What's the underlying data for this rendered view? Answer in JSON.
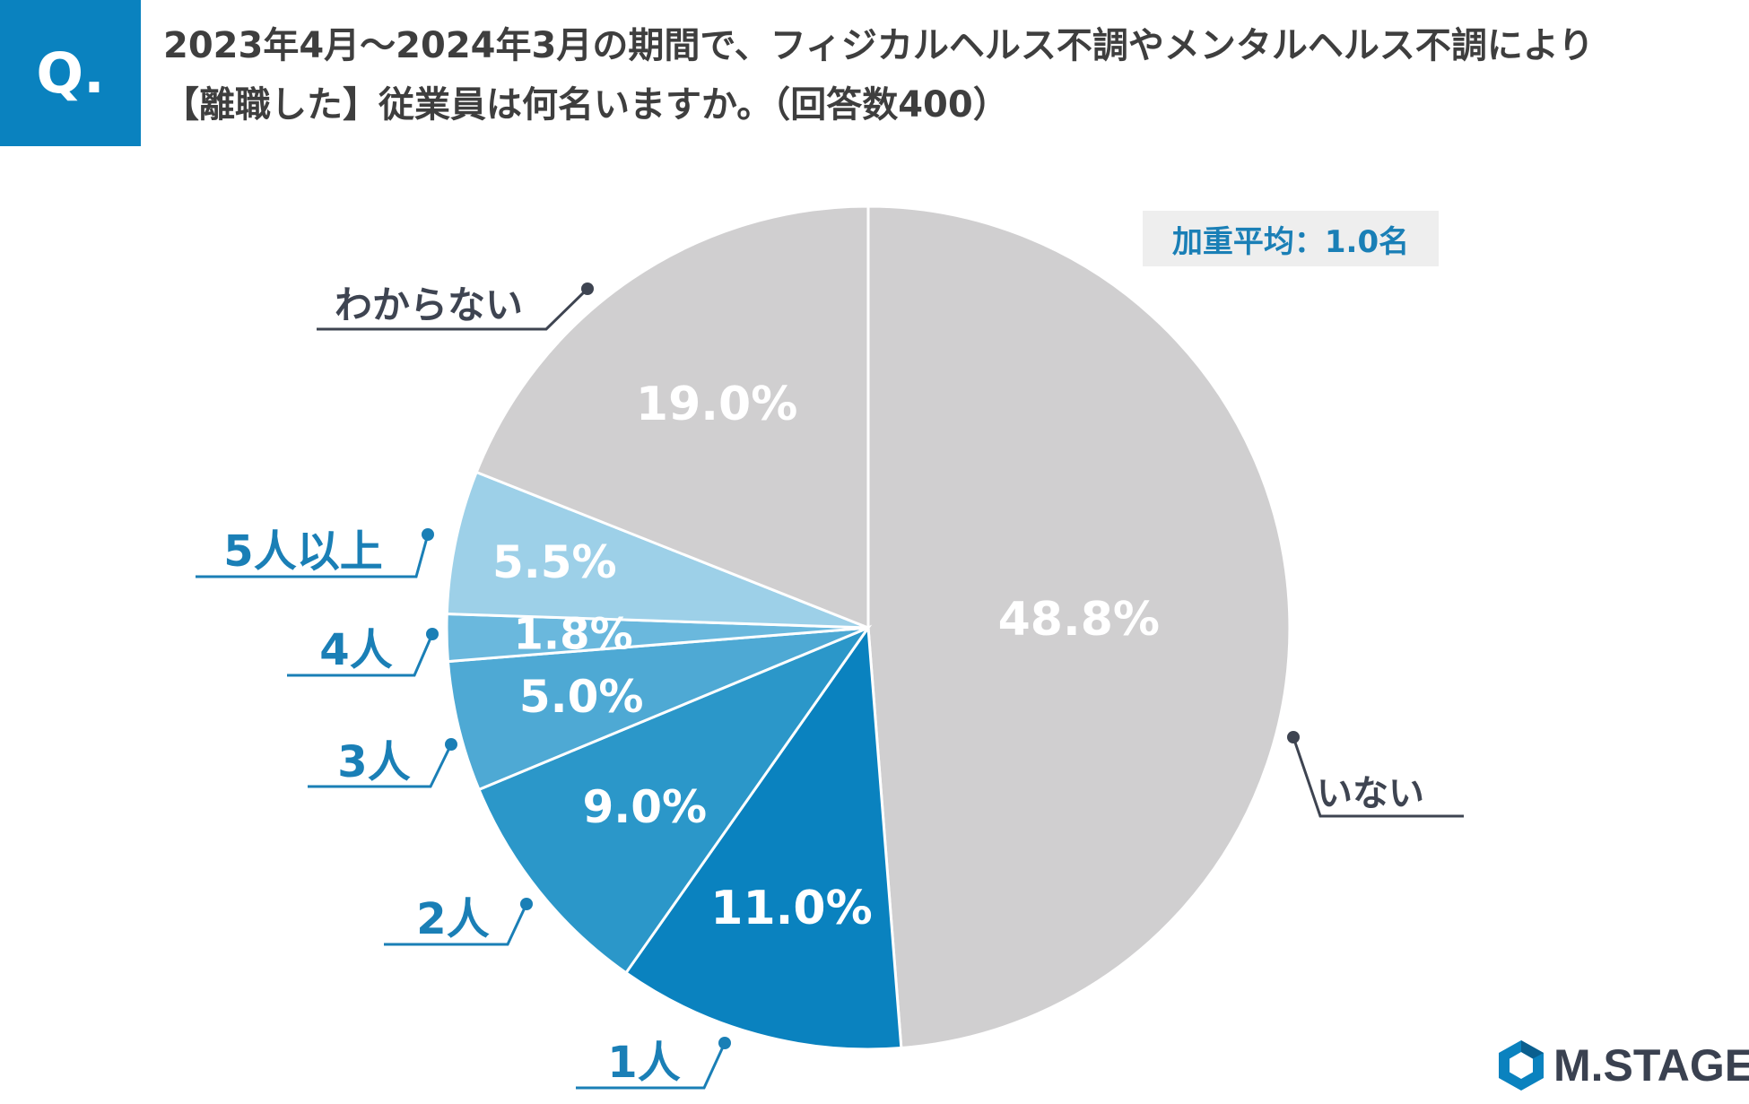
{
  "header": {
    "q_label": "Q.",
    "question_line1": "2023年4月～2024年3月の期間で、フィジカルヘルス不調やメンタルヘルス不調により",
    "question_line2": "【離職した】従業員は何名いますか。（回答数400）"
  },
  "badge": {
    "text": "加重平均：1.0名"
  },
  "logo": {
    "text": "M.STAGE",
    "icon": "hexagon-logo-icon"
  },
  "colors": {
    "accent": "#0a82bf",
    "label_blue": "#1a7fb6",
    "label_gray": "#3e4451",
    "gray_slice": "#d0cfd0"
  },
  "chart_data": {
    "type": "pie",
    "unit": "%",
    "slices": [
      {
        "label": "いない",
        "value": 48.8,
        "display": "48.8%",
        "color": "#d0cfd0"
      },
      {
        "label": "1人",
        "value": 11.0,
        "display": "11.0%",
        "color": "#0a82bf"
      },
      {
        "label": "2人",
        "value": 9.0,
        "display": "9.0%",
        "color": "#2b97c9"
      },
      {
        "label": "3人",
        "value": 5.0,
        "display": "5.0%",
        "color": "#4ea9d4"
      },
      {
        "label": "4人",
        "value": 1.8,
        "display": "1.8%",
        "color": "#6ab8dd"
      },
      {
        "label": "5人以上",
        "value": 5.5,
        "display": "5.5%",
        "color": "#9dd0e8"
      },
      {
        "label": "わからない",
        "value": 19.0,
        "display": "19.0%",
        "color": "#d0cfd0"
      }
    ]
  }
}
